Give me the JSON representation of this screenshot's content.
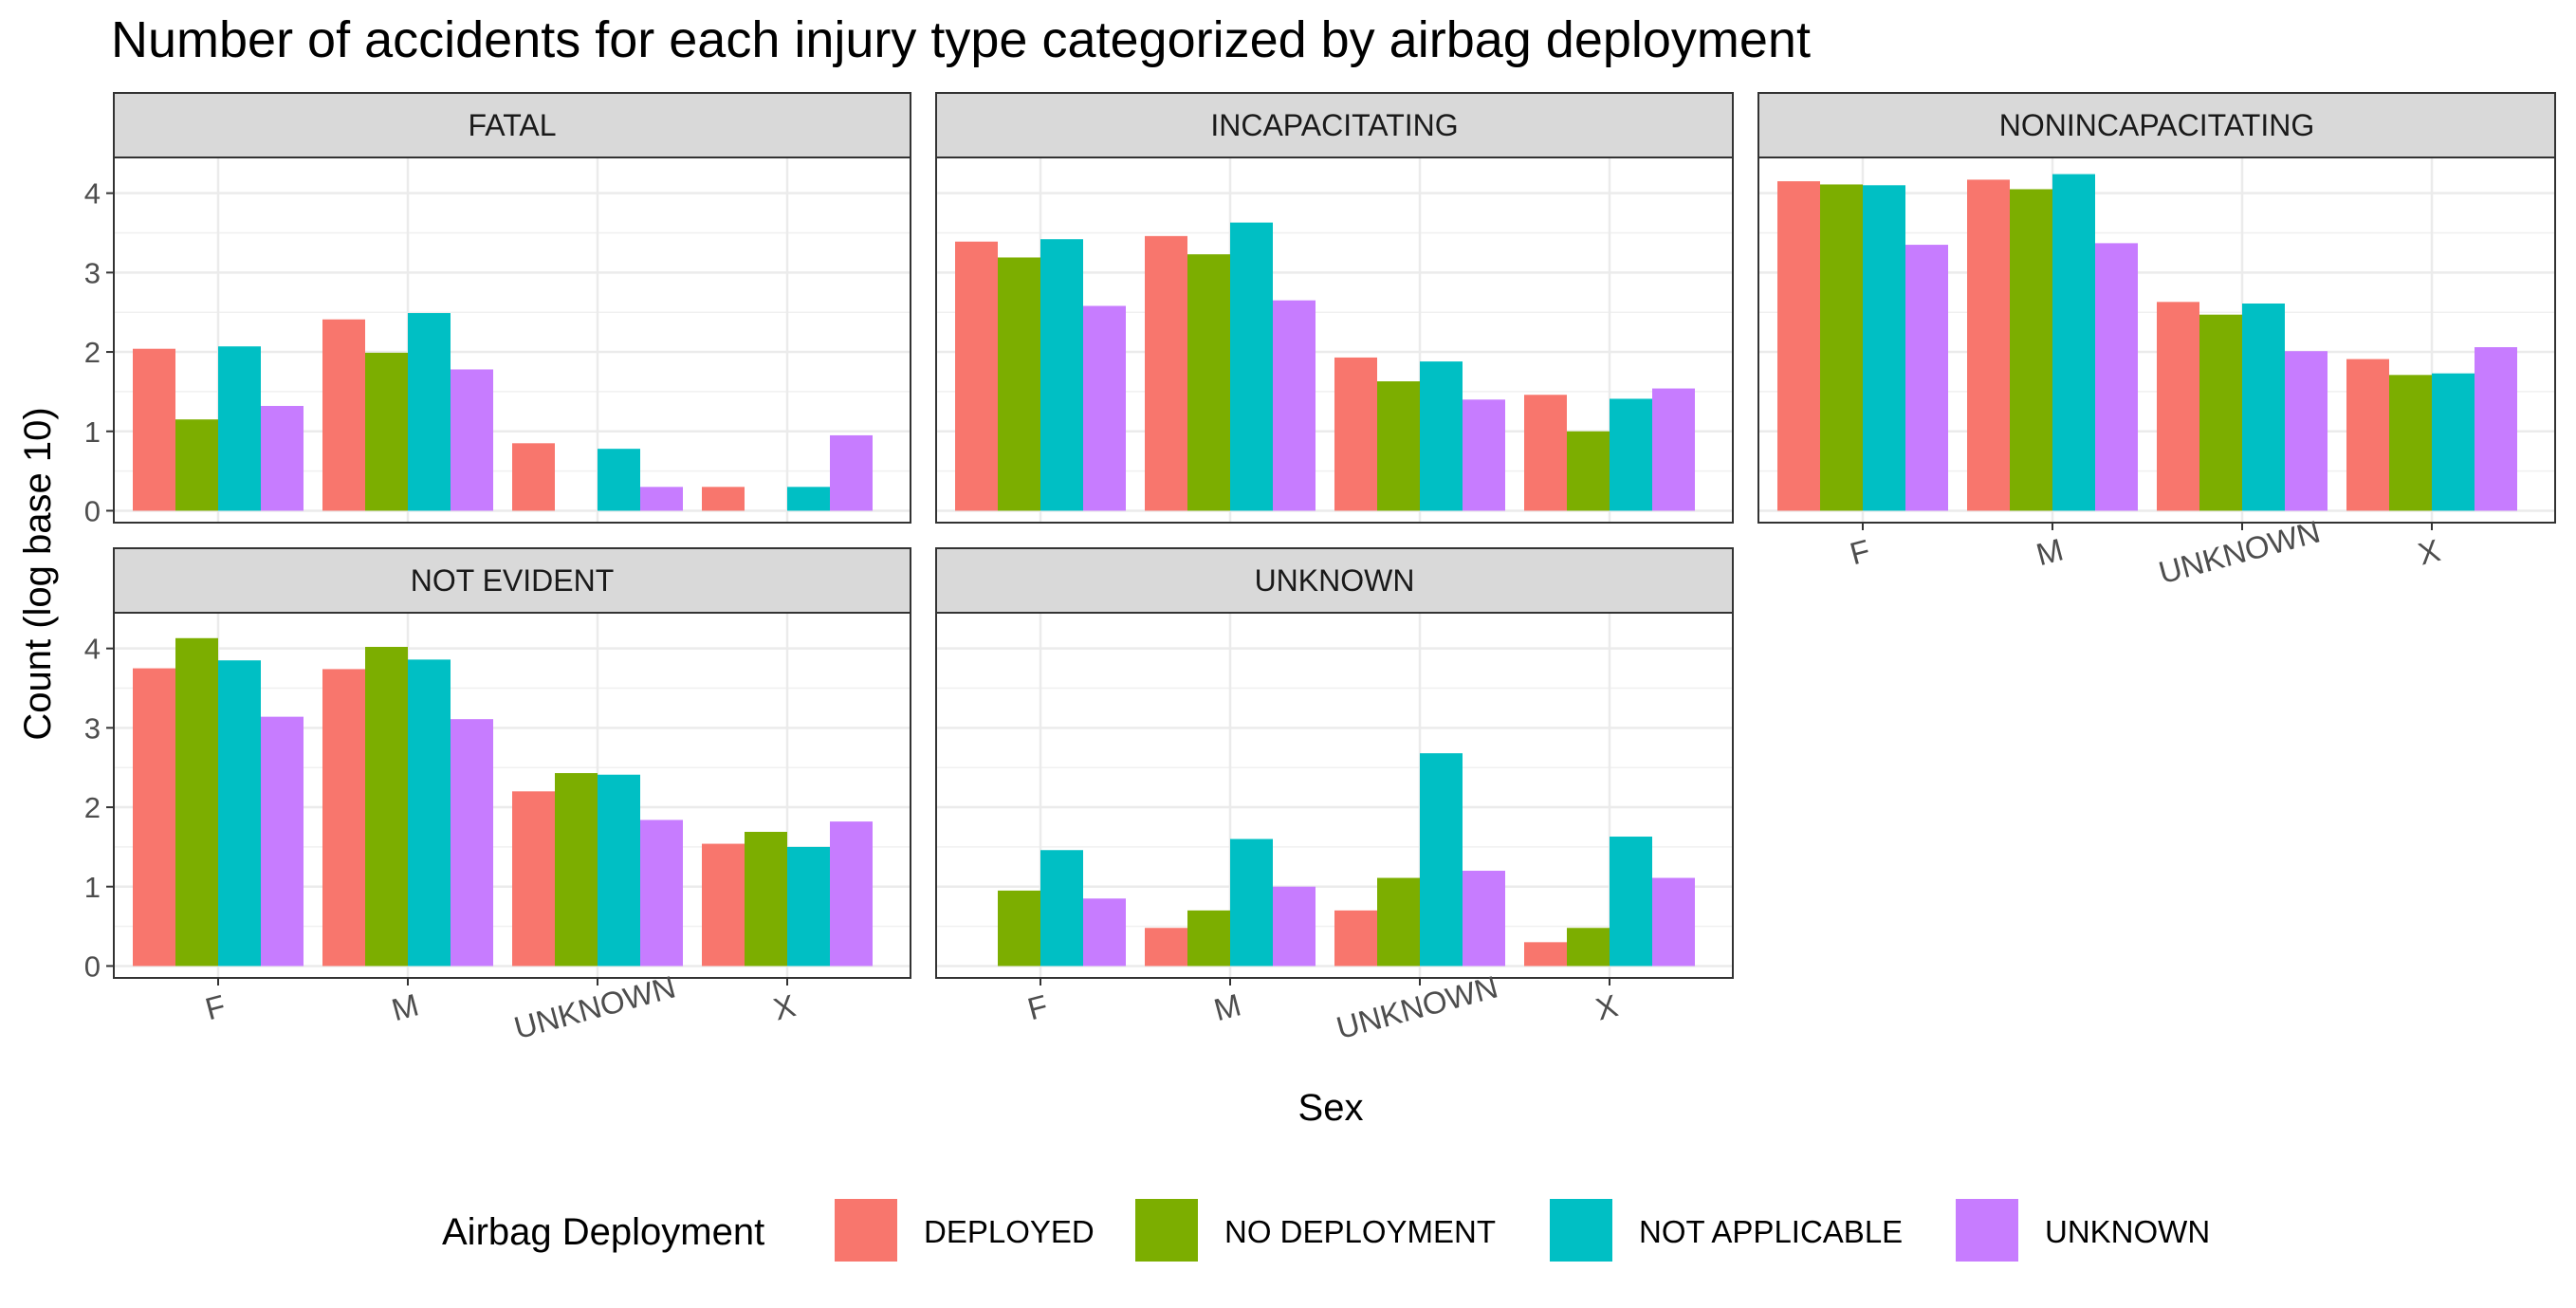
{
  "chart_data": {
    "type": "bar",
    "title": "Number of accidents for each injury type categorized by airbag deployment",
    "xlabel": "Sex",
    "ylabel": "Count (log base 10)",
    "ylim": [
      -0.15,
      4.45
    ],
    "y_ticks": [
      "0",
      "1",
      "2",
      "3",
      "4"
    ],
    "grid": true,
    "categories": [
      "F",
      "M",
      "UNKNOWN",
      "X"
    ],
    "legend": {
      "title": "Airbag Deployment",
      "position": "bottom",
      "items": [
        {
          "name": "DEPLOYED",
          "color": "#F8766D"
        },
        {
          "name": "NO DEPLOYMENT",
          "color": "#7CAE00"
        },
        {
          "name": "NOT APPLICABLE",
          "color": "#00BFC4"
        },
        {
          "name": "UNKNOWN",
          "color": "#C77CFF"
        }
      ]
    },
    "panels": [
      {
        "label": "FATAL",
        "series": [
          {
            "name": "DEPLOYED",
            "values": [
              2.04,
              2.41,
              0.85,
              0.3
            ]
          },
          {
            "name": "NO DEPLOYMENT",
            "values": [
              1.15,
              1.99,
              null,
              null
            ]
          },
          {
            "name": "NOT APPLICABLE",
            "values": [
              2.07,
              2.49,
              0.78,
              0.3
            ]
          },
          {
            "name": "UNKNOWN",
            "values": [
              1.32,
              1.78,
              0.3,
              0.95
            ]
          }
        ]
      },
      {
        "label": "INCAPACITATING",
        "series": [
          {
            "name": "DEPLOYED",
            "values": [
              3.39,
              3.46,
              1.93,
              1.46
            ]
          },
          {
            "name": "NO DEPLOYMENT",
            "values": [
              3.19,
              3.23,
              1.63,
              1.0
            ]
          },
          {
            "name": "NOT APPLICABLE",
            "values": [
              3.42,
              3.63,
              1.88,
              1.41
            ]
          },
          {
            "name": "UNKNOWN",
            "values": [
              2.58,
              2.65,
              1.4,
              1.54
            ]
          }
        ]
      },
      {
        "label": "NONINCAPACITATING",
        "series": [
          {
            "name": "DEPLOYED",
            "values": [
              4.15,
              4.17,
              2.63,
              1.91
            ]
          },
          {
            "name": "NO DEPLOYMENT",
            "values": [
              4.11,
              4.05,
              2.47,
              1.71
            ]
          },
          {
            "name": "NOT APPLICABLE",
            "values": [
              4.1,
              4.24,
              2.61,
              1.73
            ]
          },
          {
            "name": "UNKNOWN",
            "values": [
              3.35,
              3.37,
              2.01,
              2.06
            ]
          }
        ]
      },
      {
        "label": "NOT EVIDENT",
        "series": [
          {
            "name": "DEPLOYED",
            "values": [
              3.75,
              3.74,
              2.2,
              1.54
            ]
          },
          {
            "name": "NO DEPLOYMENT",
            "values": [
              4.13,
              4.02,
              2.43,
              1.69
            ]
          },
          {
            "name": "NOT APPLICABLE",
            "values": [
              3.85,
              3.86,
              2.41,
              1.5
            ]
          },
          {
            "name": "UNKNOWN",
            "values": [
              3.14,
              3.11,
              1.84,
              1.82
            ]
          }
        ]
      },
      {
        "label": "UNKNOWN",
        "series": [
          {
            "name": "DEPLOYED",
            "values": [
              null,
              0.48,
              0.7,
              0.3
            ]
          },
          {
            "name": "NO DEPLOYMENT",
            "values": [
              0.95,
              0.7,
              1.11,
              0.48
            ]
          },
          {
            "name": "NOT APPLICABLE",
            "values": [
              1.46,
              1.6,
              2.68,
              1.63
            ]
          },
          {
            "name": "UNKNOWN",
            "values": [
              0.85,
              1.0,
              1.2,
              1.11
            ]
          }
        ]
      }
    ]
  }
}
